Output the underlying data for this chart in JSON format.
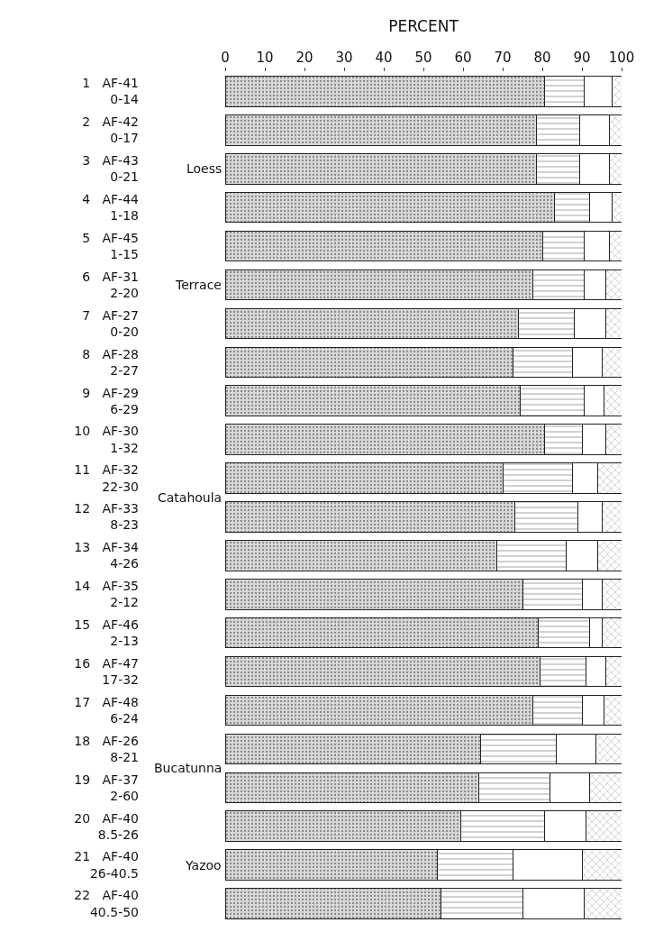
{
  "chart_data": {
    "type": "bar",
    "orientation": "horizontal",
    "stacked": true,
    "xlabel": "PERCENT",
    "categories": [
      "1   AF-41\n0-14",
      "2   AF-42\n0-17",
      "3   AF-43\n0-21",
      "4   AF-44\n1-18",
      "5   AF-45\n1-15",
      "6   AF-31\n2-20",
      "7   AF-27\n0-20",
      "8   AF-28\n2-27",
      "9   AF-29\n6-29",
      "10   AF-30\n1-32",
      "11   AF-32\n22-30",
      "12   AF-33\n8-23",
      "13   AF-34\n4-26",
      "14   AF-35\n2-12",
      "15   AF-46\n2-13",
      "16   AF-47\n17-32",
      "17   AF-48\n6-24",
      "18   AF-26\n8-21",
      "19   AF-37\n2-60",
      "20   AF-40\n8.5-26",
      "21   AF-40\n26-40.5",
      "22   AF-40\n40.5-50"
    ],
    "series": [
      {
        "values": [
          80.5,
          78.5,
          78.5,
          83,
          80,
          77.5,
          74,
          72.5,
          74.5,
          80.5,
          70,
          73,
          68.5,
          75,
          79,
          79.5,
          77.5,
          64.5,
          64,
          59.5,
          53.5,
          54.5
        ]
      },
      {
        "values": [
          10,
          11,
          11,
          9,
          10.5,
          13,
          14,
          15,
          16,
          9.5,
          17.5,
          16,
          17.5,
          15,
          13,
          11.5,
          12.5,
          19,
          18,
          21,
          19,
          20.5
        ]
      },
      {
        "values": [
          7,
          7.5,
          7.5,
          5.5,
          6.5,
          5.5,
          8,
          7.5,
          5,
          6,
          6.5,
          6,
          8,
          5,
          3,
          5,
          5.5,
          10,
          10,
          10.5,
          17.5,
          15.5
        ]
      },
      {
        "values": [
          2.5,
          3,
          3,
          2.5,
          3,
          4,
          4,
          5,
          4.5,
          4,
          6,
          5,
          6,
          5,
          5,
          4,
          4.5,
          6.5,
          8,
          9,
          10,
          9.5
        ]
      }
    ],
    "xlim": [
      0,
      100
    ],
    "xticks": [
      0,
      10,
      20,
      30,
      40,
      50,
      60,
      70,
      80,
      90,
      100
    ],
    "annotations": [
      "Loess",
      "Terrace",
      "Catahoula",
      "Bucatunna",
      "Yazoo"
    ],
    "legend": false
  }
}
